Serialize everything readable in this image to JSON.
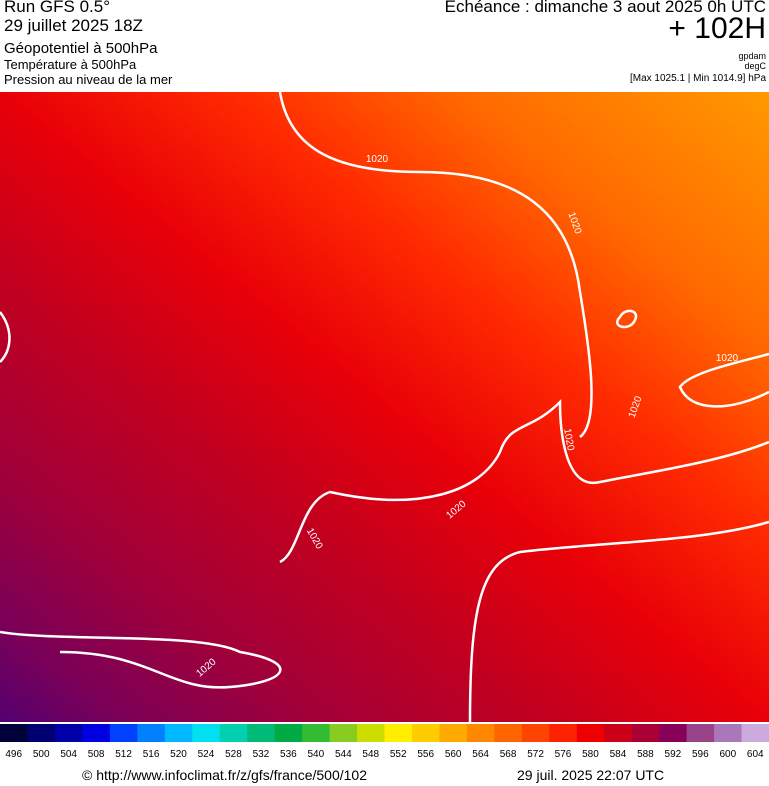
{
  "header": {
    "run": "Run GFS 0.5°",
    "date": "29 juillet 2025 18Z",
    "field1": "Géopotentiel à 500hPa",
    "field2": "Température à 500hPa",
    "field3": "Pression au niveau de la mer",
    "forecast": "Echéance : dimanche 3 aout 2025 0h UTC",
    "lead": "+ 102H",
    "unit1": "gpdam",
    "unit2": "degC",
    "range": "[Max 1025.1 | Min 1014.9] hPa"
  },
  "map": {
    "isobar_labels": [
      "1020",
      "1020",
      "1020",
      "1020",
      "1020",
      "1020",
      "1020",
      "1020"
    ]
  },
  "colorbar": {
    "labels": [
      496,
      500,
      504,
      508,
      512,
      516,
      520,
      524,
      528,
      532,
      536,
      540,
      544,
      548,
      552,
      556,
      560,
      564,
      568,
      572,
      576,
      580,
      584,
      588,
      592,
      596,
      600,
      604
    ],
    "colors": [
      "#00003a",
      "#000070",
      "#0000a8",
      "#0000e0",
      "#0040ff",
      "#0080ff",
      "#00b8ff",
      "#00e0f0",
      "#00d0b0",
      "#00bb78",
      "#00aa44",
      "#33bb33",
      "#88cc22",
      "#ccdd00",
      "#ffee00",
      "#ffcc00",
      "#ffaa00",
      "#ff8800",
      "#ff6600",
      "#ff4400",
      "#ff2200",
      "#ee0000",
      "#cc0018",
      "#aa0036",
      "#880058",
      "#994488",
      "#aa77bb",
      "#ccaadd"
    ]
  },
  "footer": {
    "url": "© http://www.infoclimat.fr/z/gfs/france/500/102",
    "timestamp": "29 juil. 2025 22:07 UTC"
  }
}
